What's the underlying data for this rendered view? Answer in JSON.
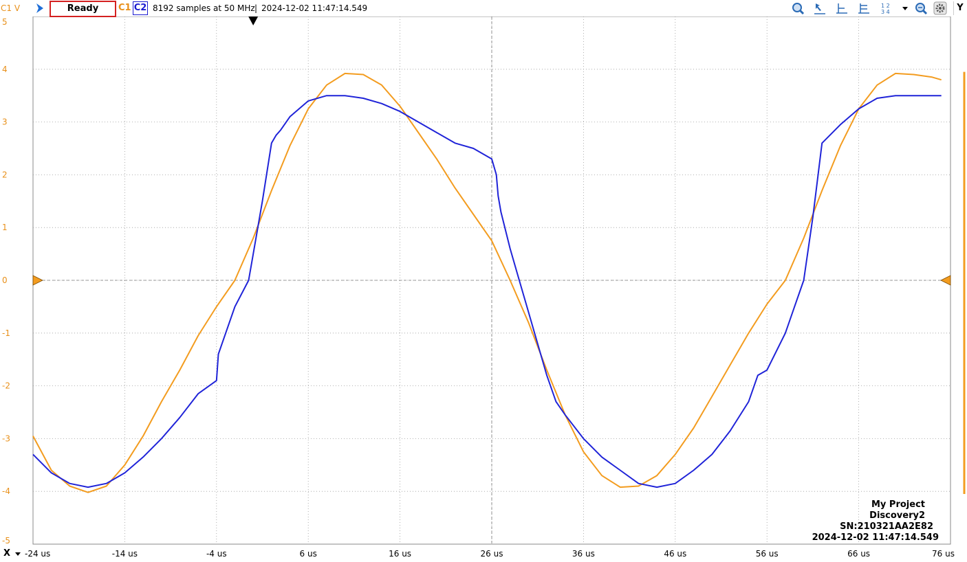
{
  "toolbar": {
    "channel_axis_label": "C1 V",
    "status": "Ready",
    "channel1_label": "C1",
    "channel2_label": "C2",
    "samples_info": "8192 samples at 50 MHz",
    "separator": "|",
    "timestamp": "2024-12-02 11:47:14.549",
    "y_button": "Y",
    "x_button": "X",
    "icons": [
      "run-arrow-icon",
      "zoom-icon",
      "cursor-arrow-icon",
      "cursor-h-icon",
      "cursor-hh-icon",
      "cursor-vh-icon",
      "layout-1234-icon",
      "dropdown-icon",
      "zoom-out-icon",
      "settings-gear-icon"
    ]
  },
  "info_box": {
    "project": "My Project",
    "device": "Discovery2",
    "serial": "SN:210321AA2E82",
    "timestamp": "2024-12-02 11:47:14.549"
  },
  "colors": {
    "c1": "#f39c1f",
    "c2": "#1f23d8",
    "status_border": "#d42020"
  },
  "chart_data": {
    "type": "line",
    "xlabel": "",
    "ylabel": "C1 V",
    "xlim": [
      -24,
      76
    ],
    "ylim": [
      -5,
      5
    ],
    "x_ticks": [
      "-24 us",
      "-14 us",
      "-4 us",
      "6 us",
      "16 us",
      "26 us",
      "36 us",
      "46 us",
      "56 us",
      "66 us",
      "76 us"
    ],
    "y_ticks": [
      "5",
      "4",
      "3",
      "2",
      "1",
      "0",
      "-1",
      "-2",
      "-3",
      "-4",
      "-5"
    ],
    "grid": true,
    "trigger_time": 0,
    "trigger_level": 0,
    "series": [
      {
        "name": "C1",
        "color": "#f39c1f",
        "x": [
          -24,
          -22,
          -20,
          -18,
          -16,
          -14,
          -12,
          -10,
          -8,
          -6,
          -4,
          -2,
          0,
          2,
          4,
          6,
          8,
          10,
          12,
          14,
          16,
          18,
          20,
          22,
          24,
          26,
          28,
          30,
          32,
          34,
          36,
          38,
          40,
          42,
          44,
          46,
          48,
          50,
          52,
          54,
          56,
          58,
          60,
          62,
          64,
          66,
          68,
          70,
          72,
          74,
          75
        ],
        "y": [
          -2.95,
          -3.6,
          -3.9,
          -4.02,
          -3.9,
          -3.5,
          -2.95,
          -2.3,
          -1.7,
          -1.05,
          -0.5,
          0.0,
          0.8,
          1.7,
          2.55,
          3.25,
          3.7,
          3.92,
          3.9,
          3.7,
          3.3,
          2.8,
          2.3,
          1.75,
          1.25,
          0.75,
          0.0,
          -0.8,
          -1.7,
          -2.55,
          -3.25,
          -3.7,
          -3.92,
          -3.9,
          -3.7,
          -3.3,
          -2.8,
          -2.2,
          -1.6,
          -1.0,
          -0.45,
          0.0,
          0.8,
          1.7,
          2.55,
          3.25,
          3.7,
          3.92,
          3.9,
          3.85,
          3.8
        ]
      },
      {
        "name": "C2",
        "color": "#1f23d8",
        "x": [
          -24,
          -22,
          -20,
          -18,
          -16,
          -14,
          -12,
          -10,
          -8,
          -6,
          -4,
          -3.8,
          -2,
          -0.5,
          0,
          1,
          2,
          2.5,
          3,
          4,
          6,
          8,
          10,
          12,
          14,
          16,
          18,
          20,
          22,
          24,
          26,
          26.5,
          26.7,
          27,
          28,
          29,
          30,
          31,
          32,
          33,
          34,
          36,
          38,
          40,
          42,
          44,
          46,
          48,
          50,
          52,
          54,
          55,
          56,
          58,
          59,
          60,
          61,
          62,
          64,
          66,
          68,
          70,
          72,
          74,
          75
        ],
        "y": [
          -3.3,
          -3.65,
          -3.85,
          -3.92,
          -3.85,
          -3.65,
          -3.35,
          -3.0,
          -2.6,
          -2.15,
          -1.9,
          -1.4,
          -0.5,
          0,
          0.5,
          1.5,
          2.6,
          2.75,
          2.85,
          3.1,
          3.4,
          3.5,
          3.5,
          3.45,
          3.35,
          3.2,
          3.0,
          2.8,
          2.6,
          2.5,
          2.3,
          2.0,
          1.6,
          1.3,
          0.6,
          0.0,
          -0.6,
          -1.2,
          -1.8,
          -2.3,
          -2.55,
          -3.0,
          -3.35,
          -3.6,
          -3.85,
          -3.92,
          -3.85,
          -3.6,
          -3.3,
          -2.85,
          -2.3,
          -1.8,
          -1.7,
          -1.0,
          -0.5,
          0.0,
          1.2,
          2.6,
          2.95,
          3.25,
          3.45,
          3.5,
          3.5,
          3.5,
          3.5
        ]
      }
    ]
  }
}
